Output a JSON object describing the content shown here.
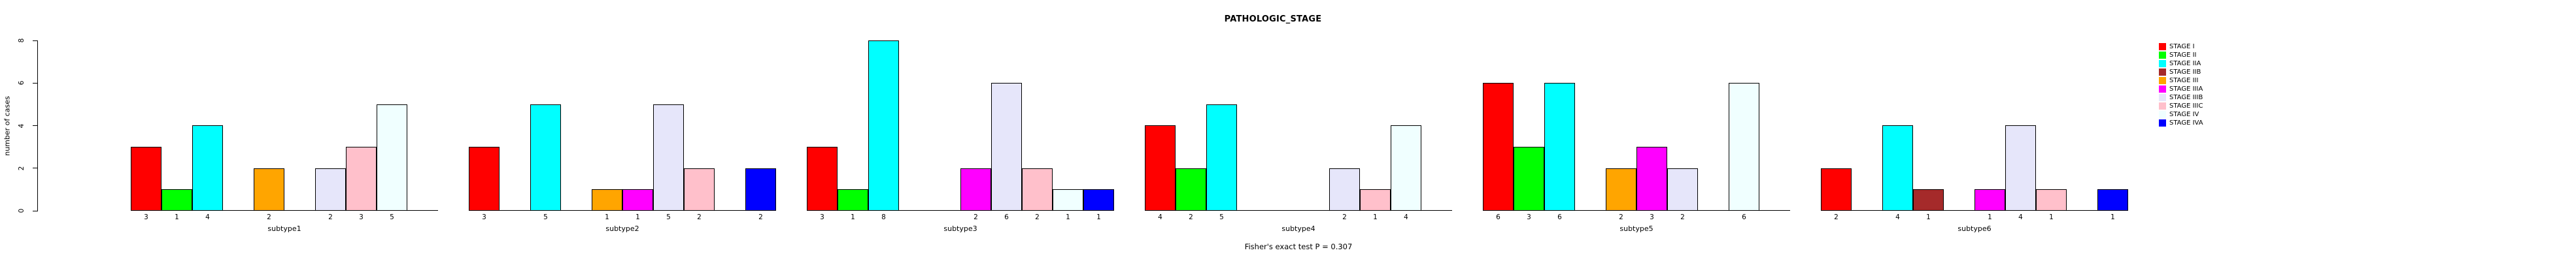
{
  "title": "PATHOLOGIC_STAGE",
  "footer_note": "Fisher's exact test P = 0.307",
  "chart_data": {
    "type": "bar",
    "title": "PATHOLOGIC_STAGE",
    "ylabel": "number of cases",
    "xlabel": "",
    "ylim": [
      0,
      8
    ],
    "yticks": [
      0,
      2,
      4,
      6,
      8
    ],
    "grid": false,
    "legend_position": "right-outside",
    "annotation": "Fisher's exact test P = 0.307",
    "bar_labels": "each nonzero bar is labeled below with its count",
    "categories": [
      "subtype1",
      "subtype2",
      "subtype3",
      "subtype4",
      "subtype5",
      "subtype6"
    ],
    "series": [
      {
        "name": "STAGE I",
        "color": "#FF0000",
        "values": [
          3,
          3,
          3,
          4,
          6,
          2
        ]
      },
      {
        "name": "STAGE II",
        "color": "#00FF00",
        "values": [
          1,
          0,
          1,
          2,
          3,
          0
        ]
      },
      {
        "name": "STAGE IIA",
        "color": "#00FFFF",
        "values": [
          4,
          5,
          8,
          5,
          6,
          4
        ]
      },
      {
        "name": "STAGE IIB",
        "color": "#A52A2A",
        "values": [
          0,
          0,
          0,
          0,
          0,
          1
        ]
      },
      {
        "name": "STAGE III",
        "color": "#FFA500",
        "values": [
          2,
          1,
          0,
          0,
          2,
          0
        ]
      },
      {
        "name": "STAGE IIIA",
        "color": "#FF00FF",
        "values": [
          0,
          1,
          2,
          0,
          3,
          1
        ]
      },
      {
        "name": "STAGE IIIB",
        "color": "#E6E6FA",
        "values": [
          2,
          5,
          6,
          2,
          2,
          4
        ]
      },
      {
        "name": "STAGE IIIC",
        "color": "#FFC0CB",
        "values": [
          3,
          2,
          2,
          1,
          0,
          1
        ]
      },
      {
        "name": "STAGE IV",
        "color": "#F0FFFF",
        "values": [
          5,
          0,
          1,
          4,
          6,
          0
        ]
      },
      {
        "name": "STAGE IVA",
        "color": "#0000FF",
        "values": [
          0,
          2,
          1,
          0,
          0,
          1
        ]
      }
    ],
    "axis_color": "#000000",
    "text_color": "#000000",
    "background_color": "#FFFFFF"
  }
}
